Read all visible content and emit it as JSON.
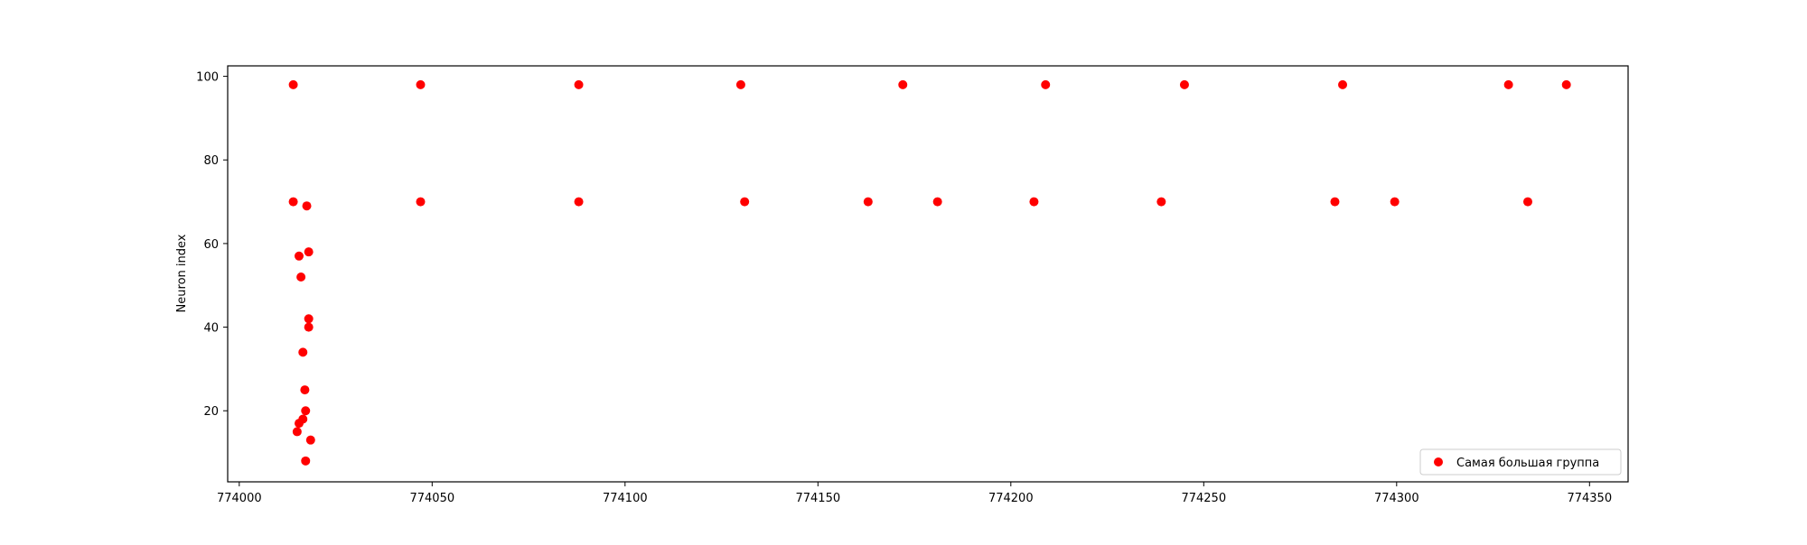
{
  "chart_data": {
    "type": "scatter",
    "title": "",
    "xlabel": "",
    "ylabel": "Neuron index",
    "xlim": [
      773997,
      774360
    ],
    "ylim": [
      3,
      102.5
    ],
    "xticks": [
      774000,
      774050,
      774100,
      774150,
      774200,
      774250,
      774300,
      774350
    ],
    "yticks": [
      20,
      40,
      60,
      80,
      100
    ],
    "grid": false,
    "legend": {
      "placement": "lower-right",
      "entries": [
        "Самая большая группа"
      ]
    },
    "series": [
      {
        "name": "Самая большая группа",
        "color": "#ff0000",
        "points": [
          {
            "x": 774014,
            "y": 98
          },
          {
            "x": 774047,
            "y": 98
          },
          {
            "x": 774088,
            "y": 98
          },
          {
            "x": 774130,
            "y": 98
          },
          {
            "x": 774172,
            "y": 98
          },
          {
            "x": 774209,
            "y": 98
          },
          {
            "x": 774245,
            "y": 98
          },
          {
            "x": 774286,
            "y": 98
          },
          {
            "x": 774329,
            "y": 98
          },
          {
            "x": 774344,
            "y": 98
          },
          {
            "x": 774014,
            "y": 70
          },
          {
            "x": 774047,
            "y": 70
          },
          {
            "x": 774088,
            "y": 70
          },
          {
            "x": 774131,
            "y": 70
          },
          {
            "x": 774163,
            "y": 70
          },
          {
            "x": 774181,
            "y": 70
          },
          {
            "x": 774206,
            "y": 70
          },
          {
            "x": 774239,
            "y": 70
          },
          {
            "x": 774284,
            "y": 70
          },
          {
            "x": 774299.5,
            "y": 70
          },
          {
            "x": 774334,
            "y": 70
          },
          {
            "x": 774017.5,
            "y": 69
          },
          {
            "x": 774018,
            "y": 58
          },
          {
            "x": 774015.5,
            "y": 57
          },
          {
            "x": 774016,
            "y": 52
          },
          {
            "x": 774018,
            "y": 42
          },
          {
            "x": 774018,
            "y": 40
          },
          {
            "x": 774016.5,
            "y": 34
          },
          {
            "x": 774017,
            "y": 25
          },
          {
            "x": 774017.2,
            "y": 20
          },
          {
            "x": 774016.5,
            "y": 18
          },
          {
            "x": 774015.5,
            "y": 17
          },
          {
            "x": 774015,
            "y": 15
          },
          {
            "x": 774018.5,
            "y": 13
          },
          {
            "x": 774017.2,
            "y": 8
          }
        ]
      }
    ]
  }
}
